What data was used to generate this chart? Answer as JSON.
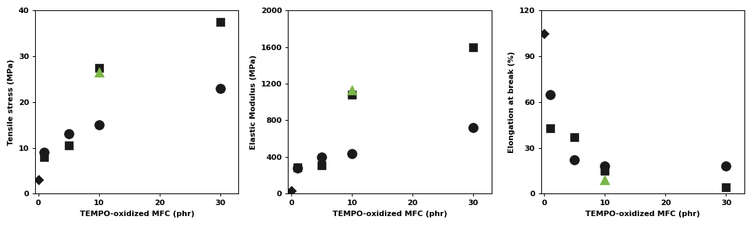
{
  "plots": [
    {
      "ylabel": "Tensile stress (MPa)",
      "ylim": [
        0,
        40
      ],
      "yticks": [
        0,
        10,
        20,
        30,
        40
      ],
      "xlim": [
        -0.5,
        33
      ],
      "xticks": [
        0,
        10,
        20,
        30
      ],
      "diamond": {
        "x": [
          0
        ],
        "y": [
          3
        ]
      },
      "circle": {
        "x": [
          1,
          5,
          10,
          30
        ],
        "y": [
          9,
          13,
          15,
          23
        ]
      },
      "square": {
        "x": [
          1,
          5,
          10,
          30
        ],
        "y": [
          8,
          10.5,
          27.5,
          37.5
        ]
      },
      "triangle": {
        "x": [
          10
        ],
        "y": [
          26.5
        ]
      }
    },
    {
      "ylabel": "Elastic Modulus (MPa)",
      "ylim": [
        0,
        2000
      ],
      "yticks": [
        0,
        400,
        800,
        1200,
        1600,
        2000
      ],
      "xlim": [
        -0.5,
        33
      ],
      "xticks": [
        0,
        10,
        20,
        30
      ],
      "diamond": {
        "x": [
          0
        ],
        "y": [
          30
        ]
      },
      "circle": {
        "x": [
          1,
          5,
          10,
          30
        ],
        "y": [
          280,
          400,
          440,
          720
        ]
      },
      "square": {
        "x": [
          1,
          5,
          10,
          30
        ],
        "y": [
          290,
          310,
          1080,
          1600
        ]
      },
      "triangle": {
        "x": [
          10
        ],
        "y": [
          1130
        ]
      }
    },
    {
      "ylabel": "Elongation at break (%)",
      "ylim": [
        0,
        120
      ],
      "yticks": [
        0,
        30,
        60,
        90,
        120
      ],
      "xlim": [
        -0.5,
        33
      ],
      "xticks": [
        0,
        10,
        20,
        30
      ],
      "diamond": {
        "x": [
          0
        ],
        "y": [
          105
        ]
      },
      "circle": {
        "x": [
          1,
          5,
          10,
          30
        ],
        "y": [
          65,
          22,
          18,
          18
        ]
      },
      "square": {
        "x": [
          1,
          5,
          10,
          30
        ],
        "y": [
          43,
          37,
          15,
          4
        ]
      },
      "triangle": {
        "x": [
          10
        ],
        "y": [
          9
        ]
      }
    }
  ],
  "xlabel": "TEMPO-oxidized MFC (phr)",
  "diamond_color": "#1a1a1a",
  "circle_color": "#1a1a1a",
  "square_color": "#1a1a1a",
  "triangle_color": "#7ab648",
  "diamond_size": 7,
  "circle_size": 10,
  "square_size": 9,
  "triangle_size": 10,
  "xlabel_fontsize": 8,
  "ylabel_fontsize": 8,
  "tick_fontsize": 8,
  "label_fontfamily": "Arial"
}
